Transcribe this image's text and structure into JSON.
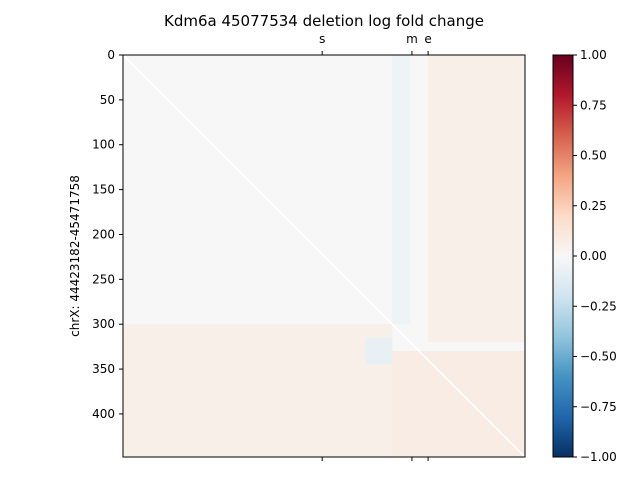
{
  "chart_data": {
    "type": "heatmap",
    "title": "Kdm6a 45077534 deletion log fold change",
    "xlabel": "",
    "ylabel": "chrX: 44423182-45471758",
    "y_ticks": [
      "0",
      "50",
      "100",
      "150",
      "200",
      "250",
      "300",
      "350",
      "400"
    ],
    "y_tick_values": [
      0,
      50,
      100,
      150,
      200,
      250,
      300,
      350,
      400
    ],
    "ylim": [
      448,
      0
    ],
    "xlim": [
      0,
      448
    ],
    "top_axis_markers": [
      {
        "label": "s",
        "position": 222
      },
      {
        "label": "m",
        "position": 322
      },
      {
        "label": "e",
        "position": 340
      }
    ],
    "bottom_axis_markers": [
      222,
      322,
      340
    ],
    "diagonal": {
      "value": "masked",
      "color": "#ffffff"
    },
    "colorbar": {
      "colormap": "RdBu_r",
      "vmin": -1.0,
      "vmax": 1.0,
      "ticks": [
        "1.00",
        "0.75",
        "0.50",
        "0.25",
        "0.00",
        "−0.25",
        "−0.50",
        "−0.75",
        "−1.00"
      ],
      "tick_values": [
        1.0,
        0.75,
        0.5,
        0.25,
        0.0,
        -0.25,
        -0.5,
        -0.75,
        -1.0
      ],
      "stops": [
        "#67001f",
        "#b2182b",
        "#d6604d",
        "#f4a582",
        "#fddbc7",
        "#f7f7f7",
        "#d1e5f0",
        "#92c5de",
        "#4393c3",
        "#2166ac",
        "#053061"
      ]
    },
    "features": [
      {
        "name": "horizontal band near s",
        "rows": [
          310,
          345
        ],
        "cols": [
          0,
          300
        ],
        "value": -0.04
      },
      {
        "name": "vertical band near m",
        "rows": [
          0,
          300
        ],
        "cols": [
          300,
          320
        ],
        "value": -0.05
      },
      {
        "name": "lower band",
        "rows": [
          300,
          448
        ],
        "cols": [
          0,
          300
        ],
        "value": 0.06
      },
      {
        "name": "right band",
        "rows": [
          0,
          320
        ],
        "cols": [
          340,
          448
        ],
        "value": 0.06
      },
      {
        "name": "bottom-right corner",
        "rows": [
          330,
          448
        ],
        "cols": [
          300,
          448
        ],
        "value": 0.08
      },
      {
        "name": "dark spot near s",
        "rows": [
          315,
          345
        ],
        "cols": [
          270,
          300
        ],
        "value": -0.08
      }
    ]
  }
}
